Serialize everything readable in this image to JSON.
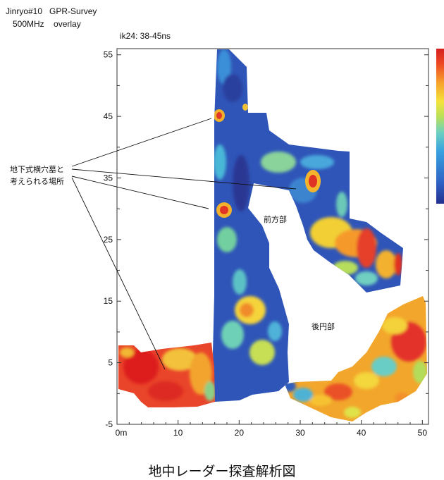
{
  "header": {
    "line1": "Jinryo#10   GPR-Survey",
    "line2": "500MHz    overlay"
  },
  "subtitle": "ik24: 38-45ns",
  "caption": "地中レーダー探査解析図",
  "chart_data": {
    "type": "heatmap",
    "title": "",
    "xlabel": "",
    "ylabel": "",
    "x_ticks": [
      "0m",
      "10",
      "20",
      "30",
      "40",
      "50"
    ],
    "y_ticks": [
      "55",
      "45",
      "35",
      "25",
      "15",
      "5",
      "-5"
    ],
    "xlim": [
      0,
      51
    ],
    "ylim": [
      -5,
      56
    ],
    "grid": false,
    "colorbar": {
      "placement": "right",
      "colors": [
        "#23308f",
        "#2f63c6",
        "#38a2df",
        "#6fd0c0",
        "#b8e05a",
        "#f4e23a",
        "#f7a22a",
        "#ee4a24",
        "#d51e1e"
      ]
    },
    "annotations": {
      "anomaly_label_line1": "地下式横穴墓と",
      "anomaly_label_line2": "考えられる場所",
      "front_part_label": "前方部",
      "rear_part_label": "後円部"
    }
  }
}
